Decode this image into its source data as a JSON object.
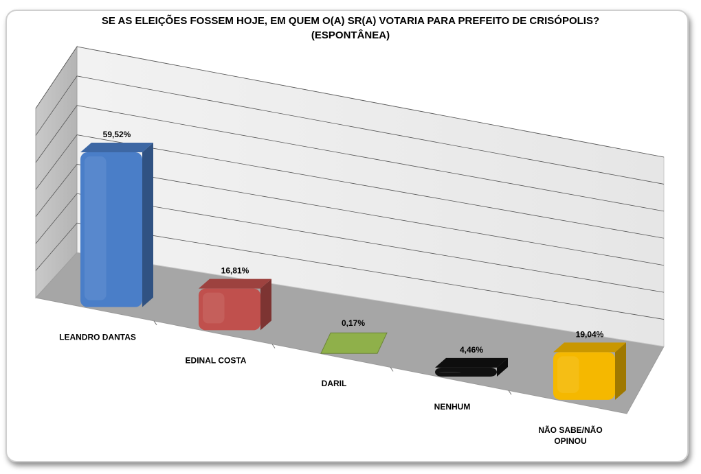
{
  "chart_data": {
    "type": "bar",
    "title": "SE AS ELEIÇÕES FOSSEM HOJE, EM QUEM O(A) SR(A) VOTARIA PARA PREFEITO DE CRISÓPOLIS?",
    "subtitle": "(ESPONTÂNEA)",
    "categories": [
      "LEANDRO DANTAS",
      "EDINAL COSTA",
      "DARIL",
      "NENHUM",
      "NÃO SABE/NÃO OPINOU"
    ],
    "category_lines": [
      [
        "LEANDRO DANTAS"
      ],
      [
        "EDINAL COSTA"
      ],
      [
        "DARIL"
      ],
      [
        "NENHUM"
      ],
      [
        "NÃO SABE/NÃO",
        "OPINOU"
      ]
    ],
    "values": [
      59.52,
      16.81,
      0.17,
      4.46,
      19.04
    ],
    "data_labels": [
      "59,52%",
      "16,81%",
      "0,17%",
      "4,46%",
      "19,04%"
    ],
    "colors": [
      "#4a7ec8",
      "#c0504d",
      "#8fb04a",
      "#111111",
      "#f5b800"
    ],
    "ylim": [
      0,
      70
    ],
    "grid": true,
    "legend": "none",
    "style": "3d-bar"
  }
}
